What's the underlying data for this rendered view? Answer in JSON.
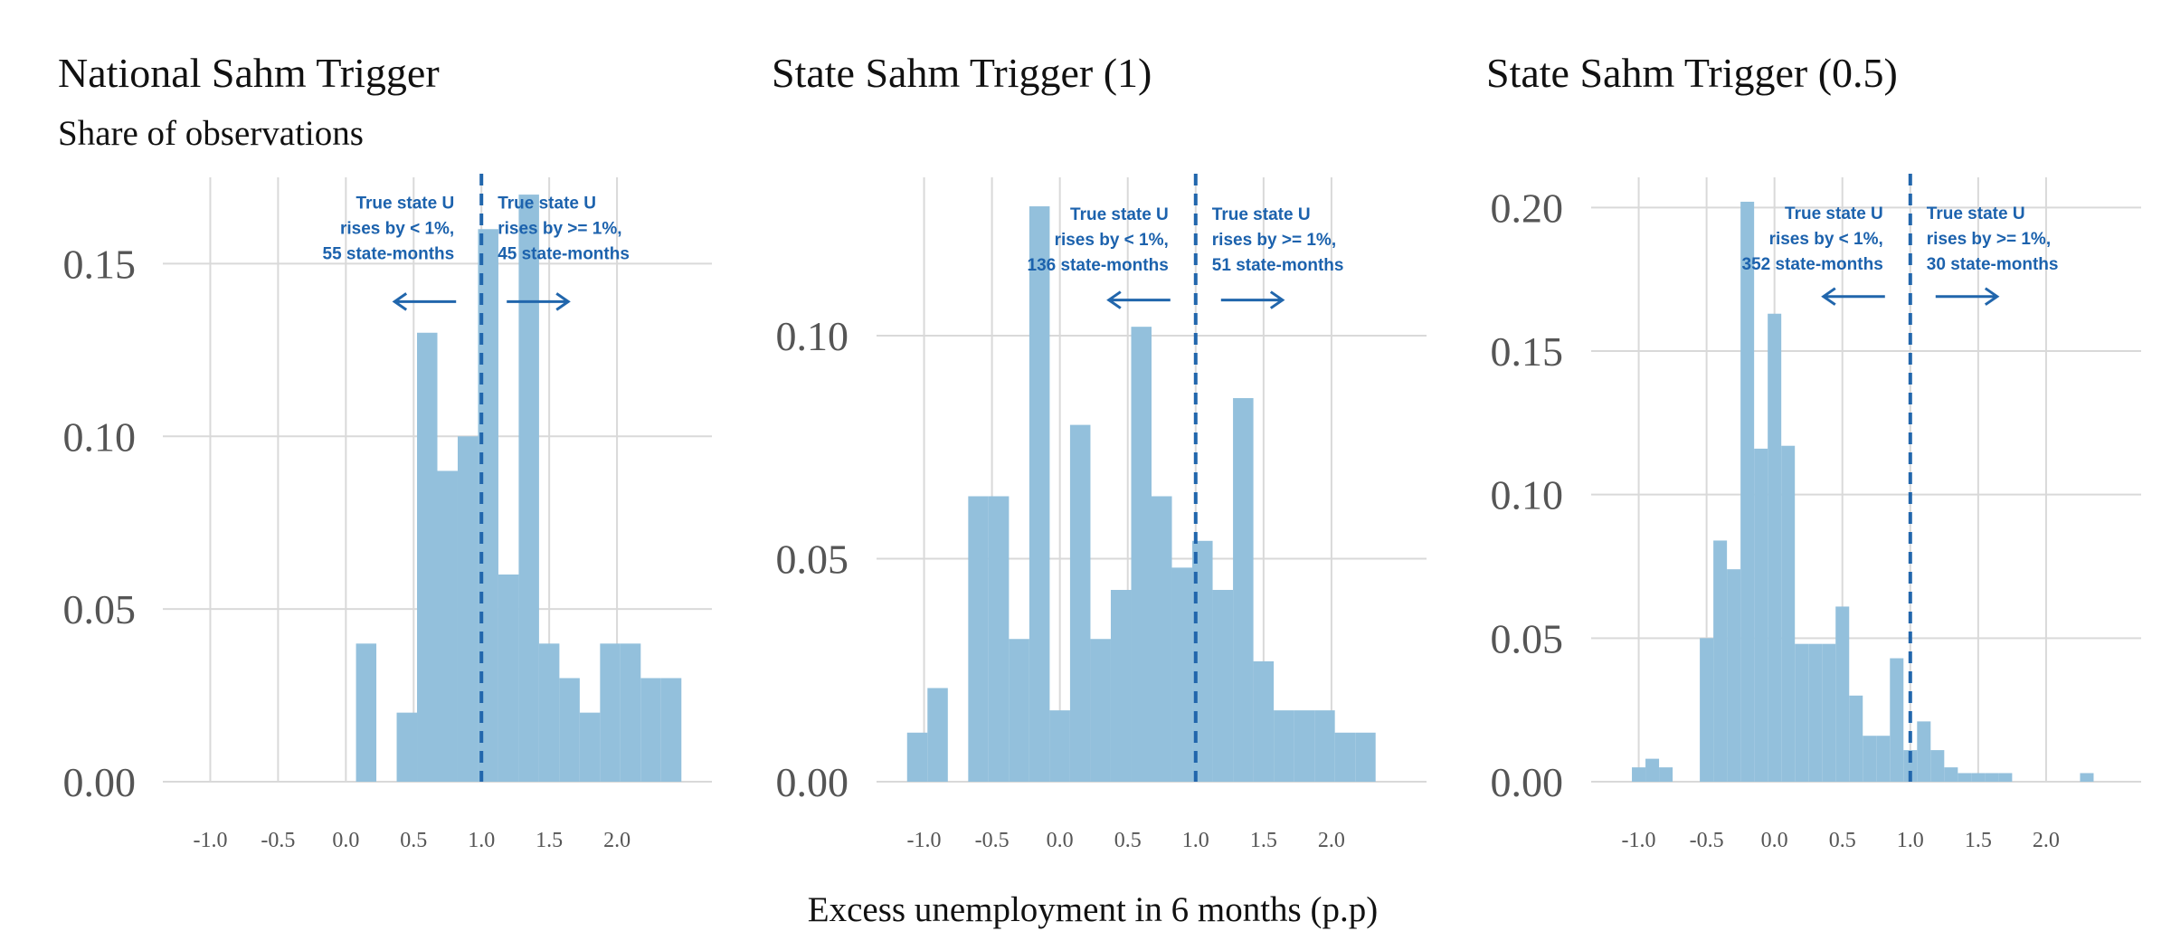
{
  "figure": {
    "xlabel": "Excess unemployment in 6 months (p.p)",
    "subtitle": "Share of observations",
    "colors": {
      "bar": "#93c0dc",
      "line": "#2166ac",
      "annotation": "#1c62ad",
      "grid": "#d9d9d9"
    }
  },
  "chart_data": [
    {
      "type": "bar",
      "title": "National Sahm Trigger",
      "ylabel": "Share of observations",
      "xlabel": "",
      "xlim": [
        -1.35,
        2.7
      ],
      "ylim": [
        0,
        0.175
      ],
      "xticks": [
        "-1.0",
        "-0.5",
        "0.0",
        "0.5",
        "1.0",
        "1.5",
        "2.0"
      ],
      "yticks": [
        "0.00",
        "0.05",
        "0.10",
        "0.15"
      ],
      "bin_width": 0.15,
      "bins": [
        {
          "x0": 0.075,
          "value": 0.04
        },
        {
          "x0": 0.225,
          "value": 0.0
        },
        {
          "x0": 0.375,
          "value": 0.02
        },
        {
          "x0": 0.525,
          "value": 0.13
        },
        {
          "x0": 0.675,
          "value": 0.09
        },
        {
          "x0": 0.825,
          "value": 0.1
        },
        {
          "x0": 0.975,
          "value": 0.16
        },
        {
          "x0": 1.125,
          "value": 0.06
        },
        {
          "x0": 1.275,
          "value": 0.17
        },
        {
          "x0": 1.425,
          "value": 0.04
        },
        {
          "x0": 1.575,
          "value": 0.03
        },
        {
          "x0": 1.725,
          "value": 0.02
        },
        {
          "x0": 1.875,
          "value": 0.04
        },
        {
          "x0": 2.025,
          "value": 0.04
        },
        {
          "x0": 2.175,
          "value": 0.03
        },
        {
          "x0": 2.325,
          "value": 0.03
        }
      ],
      "threshold": 1.0,
      "annotations": {
        "left": [
          "True state U",
          "rises by < 1%,",
          "55 state-months"
        ],
        "right": [
          "True state U",
          "rises by >= 1%,",
          "45 state-months"
        ]
      },
      "label_y_value": 0.166,
      "arrow_y_value": 0.139
    },
    {
      "type": "bar",
      "title": "State Sahm Trigger (1)",
      "ylabel": "",
      "xlabel": "",
      "xlim": [
        -1.35,
        2.7
      ],
      "ylim": [
        0,
        0.1355
      ],
      "xticks": [
        "-1.0",
        "-0.5",
        "0.0",
        "0.5",
        "1.0",
        "1.5",
        "2.0"
      ],
      "yticks": [
        "0.00",
        "0.05",
        "0.10"
      ],
      "bin_width": 0.15,
      "bins": [
        {
          "x0": -1.125,
          "value": 0.011
        },
        {
          "x0": -0.975,
          "value": 0.021
        },
        {
          "x0": -0.825,
          "value": 0.0
        },
        {
          "x0": -0.675,
          "value": 0.064
        },
        {
          "x0": -0.525,
          "value": 0.064
        },
        {
          "x0": -0.375,
          "value": 0.032
        },
        {
          "x0": -0.225,
          "value": 0.129
        },
        {
          "x0": -0.075,
          "value": 0.016
        },
        {
          "x0": 0.075,
          "value": 0.08
        },
        {
          "x0": 0.225,
          "value": 0.032
        },
        {
          "x0": 0.375,
          "value": 0.043
        },
        {
          "x0": 0.525,
          "value": 0.102
        },
        {
          "x0": 0.675,
          "value": 0.064
        },
        {
          "x0": 0.825,
          "value": 0.048
        },
        {
          "x0": 0.975,
          "value": 0.054
        },
        {
          "x0": 1.125,
          "value": 0.043
        },
        {
          "x0": 1.275,
          "value": 0.086
        },
        {
          "x0": 1.425,
          "value": 0.027
        },
        {
          "x0": 1.575,
          "value": 0.016
        },
        {
          "x0": 1.725,
          "value": 0.016
        },
        {
          "x0": 1.875,
          "value": 0.016
        },
        {
          "x0": 2.025,
          "value": 0.011
        },
        {
          "x0": 2.175,
          "value": 0.011
        }
      ],
      "threshold": 1.0,
      "annotations": {
        "left": [
          "True state U",
          "rises by < 1%,",
          "136 state-months"
        ],
        "right": [
          "True state U",
          "rises by >= 1%,",
          "51 state-months"
        ]
      },
      "label_y_value": 0.126,
      "arrow_y_value": 0.108
    },
    {
      "type": "bar",
      "title": "State Sahm Trigger (0.5)",
      "ylabel": "",
      "xlabel": "",
      "xlim": [
        -1.35,
        2.7
      ],
      "ylim": [
        0,
        0.2105
      ],
      "xticks": [
        "-1.0",
        "-0.5",
        "0.0",
        "0.5",
        "1.0",
        "1.5",
        "2.0"
      ],
      "yticks": [
        "0.00",
        "0.05",
        "0.10",
        "0.15",
        "0.20"
      ],
      "bin_width": 0.1,
      "bins": [
        {
          "x0": -1.05,
          "value": 0.005
        },
        {
          "x0": -0.95,
          "value": 0.008
        },
        {
          "x0": -0.85,
          "value": 0.005
        },
        {
          "x0": -0.75,
          "value": 0.0
        },
        {
          "x0": -0.65,
          "value": 0.0
        },
        {
          "x0": -0.55,
          "value": 0.05
        },
        {
          "x0": -0.45,
          "value": 0.084
        },
        {
          "x0": -0.35,
          "value": 0.074
        },
        {
          "x0": -0.25,
          "value": 0.202
        },
        {
          "x0": -0.15,
          "value": 0.116
        },
        {
          "x0": -0.05,
          "value": 0.163
        },
        {
          "x0": 0.05,
          "value": 0.117
        },
        {
          "x0": 0.15,
          "value": 0.048
        },
        {
          "x0": 0.25,
          "value": 0.048
        },
        {
          "x0": 0.35,
          "value": 0.048
        },
        {
          "x0": 0.45,
          "value": 0.061
        },
        {
          "x0": 0.55,
          "value": 0.03
        },
        {
          "x0": 0.65,
          "value": 0.016
        },
        {
          "x0": 0.75,
          "value": 0.016
        },
        {
          "x0": 0.85,
          "value": 0.043
        },
        {
          "x0": 0.95,
          "value": 0.011
        },
        {
          "x0": 1.05,
          "value": 0.021
        },
        {
          "x0": 1.15,
          "value": 0.011
        },
        {
          "x0": 1.25,
          "value": 0.005
        },
        {
          "x0": 1.35,
          "value": 0.003
        },
        {
          "x0": 1.45,
          "value": 0.003
        },
        {
          "x0": 1.55,
          "value": 0.003
        },
        {
          "x0": 1.65,
          "value": 0.003
        },
        {
          "x0": 1.75,
          "value": 0.0
        },
        {
          "x0": 1.85,
          "value": 0.0
        },
        {
          "x0": 1.95,
          "value": 0.0
        },
        {
          "x0": 2.05,
          "value": 0.0
        },
        {
          "x0": 2.15,
          "value": 0.0
        },
        {
          "x0": 2.25,
          "value": 0.003
        }
      ],
      "threshold": 1.0,
      "annotations": {
        "left": [
          "True state U",
          "rises by < 1%,",
          "352 state-months"
        ],
        "right": [
          "True state U",
          "rises by >= 1%,",
          "30 state-months"
        ]
      },
      "label_y_value": 0.196,
      "arrow_y_value": 0.169
    }
  ]
}
